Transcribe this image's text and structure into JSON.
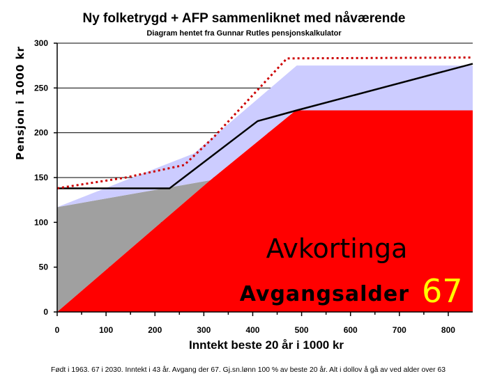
{
  "chart_data": {
    "type": "area",
    "title": "Ny folketrygd + AFP sammenliknet med nåværende",
    "subtitle": "Diagram hentet fra Gunnar Rutles pensjonskalkulator",
    "xlabel": "Inntekt beste 20 år i 1000 kr",
    "ylabel": "Pensjon i 1000 kr",
    "xlim": [
      0,
      850
    ],
    "ylim": [
      0,
      300
    ],
    "xticks": [
      "0",
      "100",
      "200",
      "300",
      "400",
      "500",
      "600",
      "700",
      "800"
    ],
    "yticks": [
      "0",
      "50",
      "100",
      "150",
      "200",
      "250",
      "300"
    ],
    "grid": "horizontal",
    "legend": "none",
    "series": [
      {
        "color": "#a0a0a0",
        "fill": "area",
        "x": [
          0,
          313,
          0
        ],
        "y": [
          117,
          147,
          0
        ]
      },
      {
        "color": "#ff0000",
        "fill": "area",
        "x": [
          0,
          313,
          488,
          850,
          850
        ],
        "y": [
          0,
          147,
          225,
          225,
          0
        ]
      },
      {
        "color": "#ccccff",
        "fill": "band",
        "x": [
          0,
          280,
          490,
          850
        ],
        "y": [
          117,
          177,
          275,
          275
        ]
      },
      {
        "color": "#000000",
        "style": "solid",
        "x": [
          0,
          230,
          410,
          490,
          850
        ],
        "y": [
          138,
          138,
          213,
          225,
          277
        ]
      },
      {
        "color": "#cc0000",
        "style": "dotted",
        "x": [
          0,
          140,
          260,
          320,
          470,
          850
        ],
        "y": [
          138,
          150,
          164,
          195,
          283,
          284
        ]
      }
    ],
    "annotations": [
      "Avkortinga",
      "Avgangsalder",
      "67"
    ],
    "footnote": "Født i 1963. 67 i 2030. Inntekt i 43 år. Avgang der 67. Gj.sn.lønn 100 % av beste 20 år. Alt i dollov å gå av ved alder over 63"
  }
}
